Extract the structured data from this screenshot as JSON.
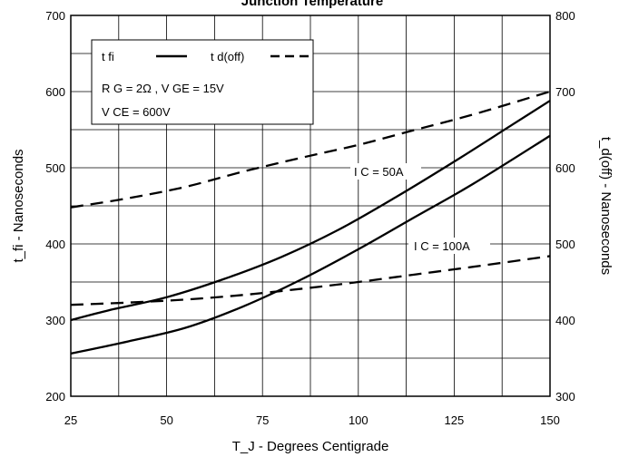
{
  "chart_data": {
    "type": "line",
    "title": "Junction Temperature",
    "xlabel": "T_J - Degrees Centigrade",
    "ylabel": "t_fi - Nanoseconds",
    "y2label": "t_d(off) - Nanoseconds",
    "xlim": [
      25,
      150
    ],
    "ylim": [
      200,
      700
    ],
    "y2lim": [
      300,
      800
    ],
    "xticks": [
      "25",
      "50",
      "75",
      "100",
      "125",
      "150"
    ],
    "yticks": [
      "200",
      "300",
      "400",
      "500",
      "600",
      "700"
    ],
    "y2ticks": [
      "300",
      "400",
      "500",
      "600",
      "700",
      "800"
    ],
    "grid": true,
    "legend": {
      "placement": "top-left",
      "tfi_label": "t fi",
      "tdoff_label": "t d(off)",
      "cond_line1": "R G = 2Ω ,  V GE = 15V",
      "cond_line2": "V CE = 600V"
    },
    "annotations": {
      "ic50": "I C = 50A",
      "ic100": "I C = 100A"
    },
    "series": [
      {
        "kind": "t_fi",
        "condition": "I_C = 50A",
        "axis": "left",
        "style": "solid",
        "x": [
          25,
          35,
          50,
          65,
          80,
          95,
          110,
          125,
          140,
          150
        ],
        "y": [
          300,
          313,
          330,
          354,
          383,
          419,
          462,
          508,
          556,
          588
        ]
      },
      {
        "kind": "t_fi",
        "condition": "I_C = 100A",
        "axis": "left",
        "style": "solid",
        "x": [
          25,
          40,
          55,
          70,
          85,
          100,
          115,
          130,
          150
        ],
        "y": [
          256,
          272,
          290,
          318,
          353,
          393,
          436,
          479,
          542
        ]
      },
      {
        "kind": "t_d(off)",
        "condition": "I_C = 50A",
        "axis": "right",
        "style": "dashed",
        "x": [
          25,
          40,
          55,
          70,
          85,
          100,
          115,
          130,
          150
        ],
        "y": [
          548,
          560,
          575,
          595,
          613,
          630,
          650,
          670,
          700
        ]
      },
      {
        "kind": "t_d(off)",
        "condition": "I_C = 100A",
        "axis": "right",
        "style": "dashed",
        "x": [
          25,
          40,
          55,
          70,
          85,
          100,
          115,
          130,
          150
        ],
        "y": [
          420,
          423,
          427,
          433,
          441,
          450,
          460,
          470,
          484
        ]
      }
    ]
  }
}
